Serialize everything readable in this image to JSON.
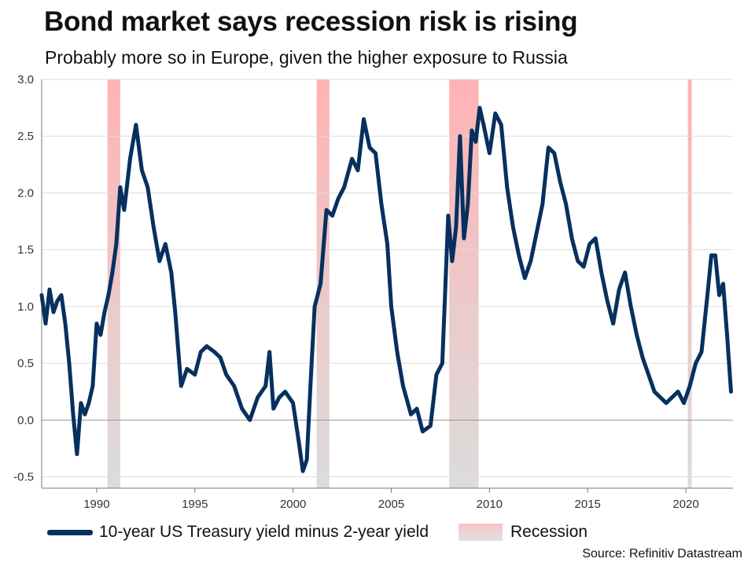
{
  "title": "Bond market says recession risk is rising",
  "subtitle": "Probably more so in Europe, given the higher exposure to Russia",
  "source": "Source: Refinitiv Datastream",
  "colors": {
    "line": "#06305e",
    "recession_top": "#ffb3b3",
    "recession_bottom": "#dcdcdc",
    "grid": "#dddddd",
    "zero": "#999999"
  },
  "legend": {
    "series_label": "10-year US Treasury yield minus 2-year yield",
    "recession_label": "Recession"
  },
  "chart_data": {
    "type": "line",
    "title": "Bond market says recession risk is rising",
    "xlabel": "",
    "ylabel": "",
    "xlim": [
      1987.2,
      2022.4
    ],
    "ylim": [
      -0.6,
      3.0
    ],
    "xticks": [
      1990,
      1995,
      2000,
      2005,
      2010,
      2015,
      2020
    ],
    "yticks": [
      -0.5,
      0.0,
      0.5,
      1.0,
      1.5,
      2.0,
      2.5,
      3.0
    ],
    "ytick_labels": [
      "-0.5",
      "0.0",
      "0.5",
      "1.0",
      "1.5",
      "2.0",
      "2.5",
      "3.0"
    ],
    "recessions": [
      [
        1990.55,
        1991.2
      ],
      [
        2001.2,
        2001.85
      ],
      [
        2007.95,
        2009.45
      ],
      [
        2020.1,
        2020.3
      ]
    ],
    "series": [
      {
        "name": "10-year US Treasury yield minus 2-year yield",
        "x": [
          1987.2,
          1987.4,
          1987.6,
          1987.8,
          1988.0,
          1988.2,
          1988.4,
          1988.6,
          1988.8,
          1989.0,
          1989.2,
          1989.4,
          1989.6,
          1989.8,
          1990.0,
          1990.2,
          1990.4,
          1990.6,
          1990.8,
          1991.0,
          1991.2,
          1991.4,
          1991.7,
          1992.0,
          1992.3,
          1992.6,
          1992.9,
          1993.2,
          1993.5,
          1993.8,
          1994.0,
          1994.3,
          1994.6,
          1995.0,
          1995.3,
          1995.6,
          1996.0,
          1996.3,
          1996.6,
          1997.0,
          1997.4,
          1997.8,
          1998.2,
          1998.6,
          1998.8,
          1999.0,
          1999.3,
          1999.6,
          2000.0,
          2000.3,
          2000.5,
          2000.7,
          2000.9,
          2001.1,
          2001.4,
          2001.7,
          2002.0,
          2002.3,
          2002.6,
          2003.0,
          2003.3,
          2003.6,
          2003.9,
          2004.2,
          2004.5,
          2004.8,
          2005.0,
          2005.3,
          2005.6,
          2006.0,
          2006.3,
          2006.6,
          2007.0,
          2007.3,
          2007.6,
          2007.9,
          2008.1,
          2008.3,
          2008.5,
          2008.7,
          2008.9,
          2009.1,
          2009.3,
          2009.5,
          2009.7,
          2010.0,
          2010.3,
          2010.6,
          2010.9,
          2011.2,
          2011.5,
          2011.8,
          2012.1,
          2012.4,
          2012.7,
          2013.0,
          2013.3,
          2013.6,
          2013.9,
          2014.2,
          2014.5,
          2014.8,
          2015.1,
          2015.4,
          2015.7,
          2016.0,
          2016.3,
          2016.6,
          2016.9,
          2017.2,
          2017.5,
          2017.8,
          2018.1,
          2018.4,
          2018.7,
          2019.0,
          2019.3,
          2019.6,
          2019.9,
          2020.2,
          2020.5,
          2020.8,
          2021.1,
          2021.3,
          2021.5,
          2021.7,
          2021.9,
          2022.1,
          2022.3
        ],
        "values": [
          1.1,
          0.85,
          1.15,
          0.95,
          1.05,
          1.1,
          0.85,
          0.5,
          0.05,
          -0.3,
          0.15,
          0.05,
          0.15,
          0.3,
          0.85,
          0.75,
          0.95,
          1.1,
          1.3,
          1.55,
          2.05,
          1.85,
          2.3,
          2.6,
          2.2,
          2.05,
          1.7,
          1.4,
          1.55,
          1.3,
          0.95,
          0.3,
          0.45,
          0.4,
          0.6,
          0.65,
          0.6,
          0.55,
          0.4,
          0.3,
          0.1,
          0.0,
          0.2,
          0.3,
          0.6,
          0.1,
          0.2,
          0.25,
          0.15,
          -0.2,
          -0.45,
          -0.35,
          0.35,
          1.0,
          1.2,
          1.85,
          1.8,
          1.95,
          2.05,
          2.3,
          2.2,
          2.65,
          2.4,
          2.35,
          1.9,
          1.55,
          1.0,
          0.6,
          0.3,
          0.05,
          0.1,
          -0.1,
          -0.05,
          0.4,
          0.5,
          1.8,
          1.4,
          1.7,
          2.5,
          1.6,
          1.9,
          2.55,
          2.45,
          2.75,
          2.6,
          2.35,
          2.7,
          2.6,
          2.05,
          1.7,
          1.45,
          1.25,
          1.4,
          1.65,
          1.9,
          2.4,
          2.35,
          2.1,
          1.9,
          1.6,
          1.4,
          1.35,
          1.55,
          1.6,
          1.3,
          1.05,
          0.85,
          1.15,
          1.3,
          1.0,
          0.75,
          0.55,
          0.4,
          0.25,
          0.2,
          0.15,
          0.2,
          0.25,
          0.15,
          0.3,
          0.5,
          0.6,
          1.1,
          1.45,
          1.45,
          1.1,
          1.2,
          0.75,
          0.25
        ]
      }
    ]
  }
}
